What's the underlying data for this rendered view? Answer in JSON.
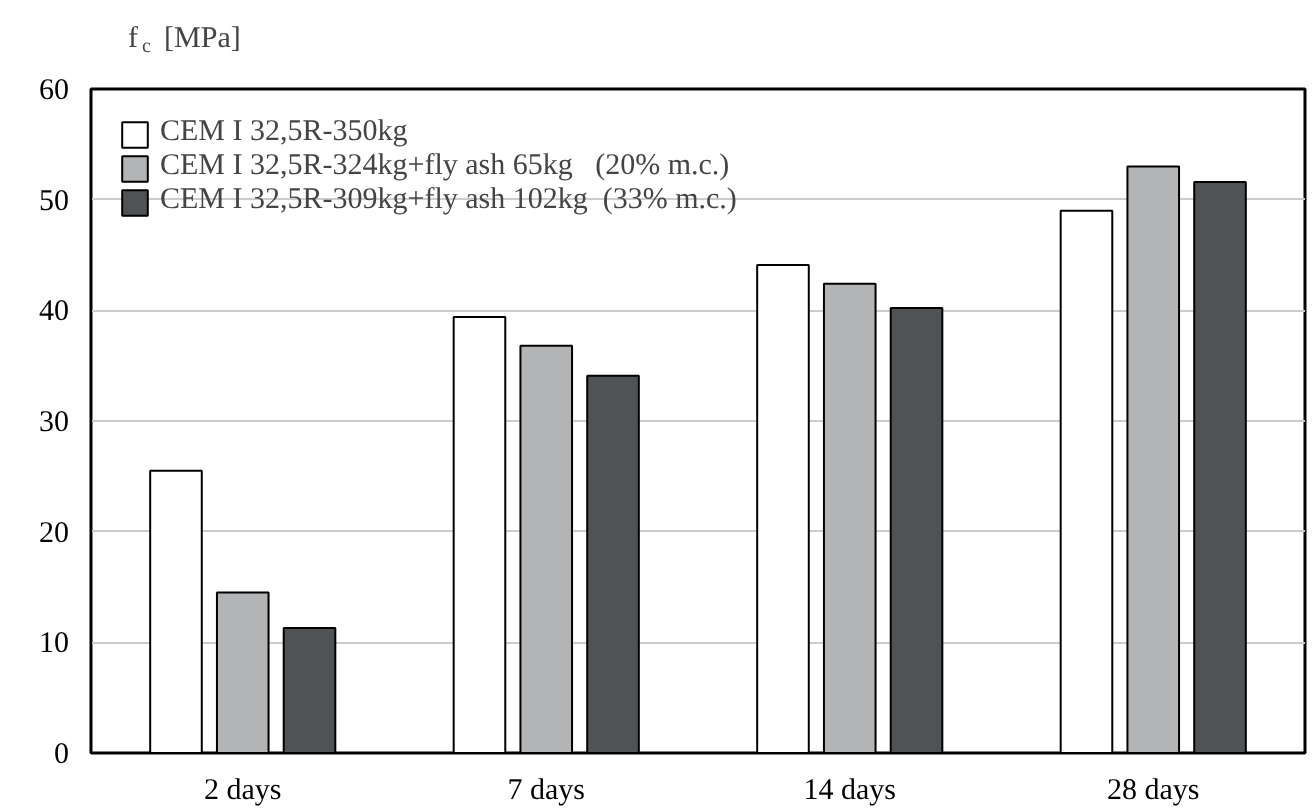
{
  "chart_data": {
    "type": "bar",
    "ylabel": "f$_{c}$ [MPa]",
    "categories": [
      "2 days",
      "7 days",
      "14 days",
      "28 days"
    ],
    "series": [
      {
        "name": "CEM I 32,5R-350kg",
        "color": "#ffffff",
        "values": [
          25.5,
          39.4,
          44.1,
          49.0
        ]
      },
      {
        "name": "CEM I 32,5R-324kg+fly ash 65kg   (20% m.c.)",
        "color": "#b2b4b6",
        "values": [
          14.5,
          36.8,
          42.4,
          53.0
        ]
      },
      {
        "name": "CEM I 32,5R-309kg+fly ash 102kg  (33% m.c.)",
        "color": "#505356",
        "values": [
          11.3,
          34.1,
          40.2,
          51.6
        ]
      }
    ],
    "ylim": [
      0,
      60
    ],
    "yticks": [
      0,
      10,
      20,
      30,
      40,
      50,
      60
    ],
    "grid": "y",
    "legend": "top left"
  }
}
